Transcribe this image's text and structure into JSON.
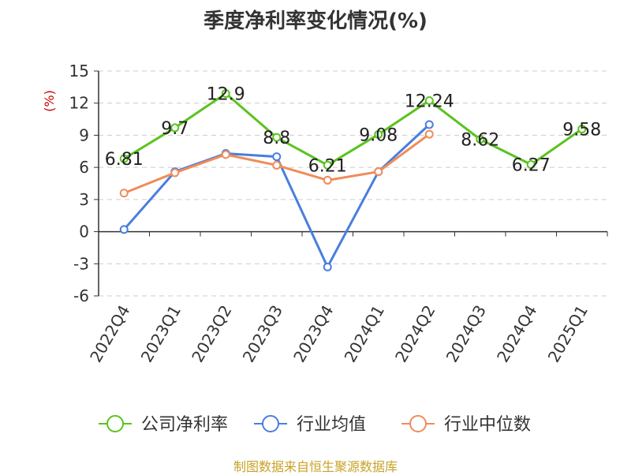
{
  "chart_data": {
    "type": "line",
    "title": "季度净利率变化情况(%)",
    "ylabel": "(%)",
    "xlabel": "",
    "ylim": [
      -6,
      15
    ],
    "yticks": [
      15,
      12,
      9,
      6,
      3,
      0,
      -3,
      -6
    ],
    "grid": true,
    "legend_position": "bottom",
    "categories": [
      "2022Q4",
      "2023Q1",
      "2023Q2",
      "2023Q3",
      "2023Q4",
      "2024Q1",
      "2024Q2",
      "2024Q3",
      "2024Q4",
      "2025Q1"
    ],
    "series": [
      {
        "name": "公司净利率",
        "color": "#5ac31e",
        "values": [
          6.81,
          9.7,
          12.9,
          8.8,
          6.21,
          9.08,
          12.24,
          8.62,
          6.27,
          9.58
        ],
        "labels": [
          "6.81",
          "9.7",
          "12.9",
          "8.8",
          "6.21",
          "9.08",
          "12.24",
          "8.62",
          "6.27",
          "9.58"
        ]
      },
      {
        "name": "行业均值",
        "color": "#4a7ede",
        "values": [
          0.2,
          5.6,
          7.3,
          7.0,
          -3.3,
          5.6,
          10.0,
          null,
          null,
          null
        ]
      },
      {
        "name": "行业中位数",
        "color": "#f08c5a",
        "values": [
          3.6,
          5.5,
          7.2,
          6.2,
          4.8,
          5.6,
          9.1,
          null,
          null,
          null
        ]
      }
    ]
  },
  "footer": {
    "source": "制图数据来自恒生聚源数据库"
  }
}
